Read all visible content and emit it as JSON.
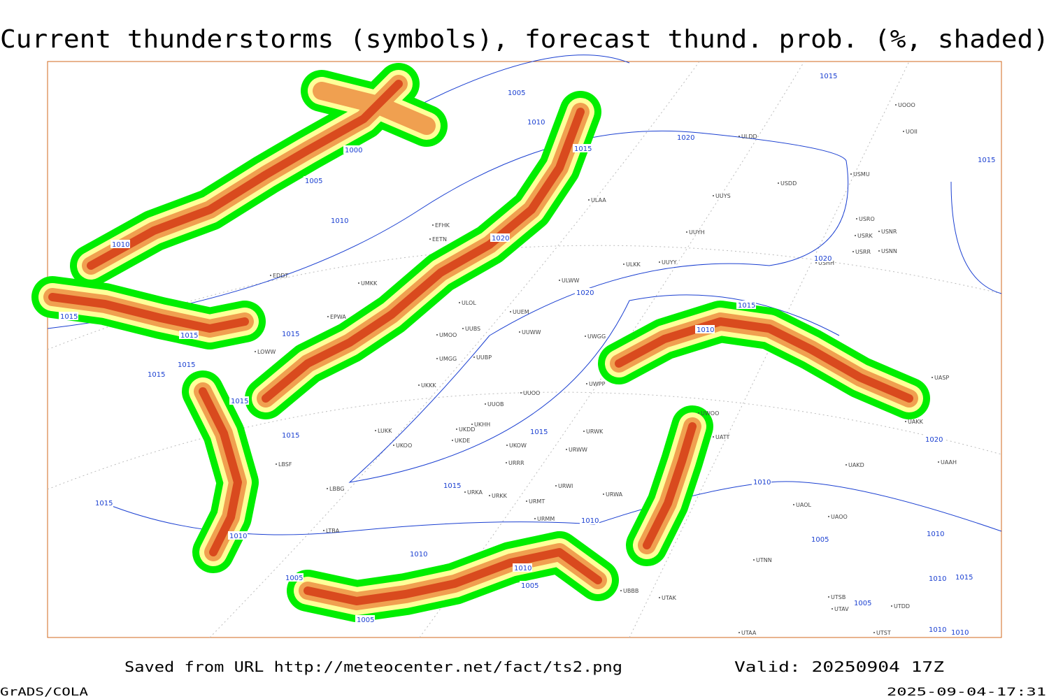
{
  "header": {
    "title": "Current thunderstorms (symbols), forecast thund. prob. (%, shaded)"
  },
  "footer": {
    "source": "Saved from URL http://meteocenter.net/fact/ts2.png",
    "valid": "Valid: 20250904 17Z",
    "software": "GrADS/COLA",
    "timestamp": "2025-09-04-17:31"
  },
  "map": {
    "stations": [
      "EFHK",
      "EETN",
      "EDDT",
      "EPWA",
      "UMKK",
      "ULOL",
      "UMOO",
      "UUBS",
      "UMGG",
      "UUBP",
      "UKKK",
      "UUOO",
      "UUOB",
      "UKHH",
      "UKDD",
      "LUKK",
      "UKOO",
      "UKDE",
      "UKOW",
      "URRR",
      "URKA",
      "URKK",
      "URMT",
      "URMM",
      "URWI",
      "URWA",
      "URWW",
      "URWK",
      "UWPP",
      "UWGG",
      "UUWW",
      "UUEM",
      "ULWW",
      "ULKK",
      "UUYY",
      "UUYH",
      "UUYS",
      "ULAA",
      "ULDD",
      "USDD",
      "USMU",
      "UOOO",
      "UOII",
      "USRO",
      "USRK",
      "USNR",
      "USRR",
      "USNN",
      "USHH",
      "UWOO",
      "UATT",
      "UAKD",
      "UAOL",
      "UAOO",
      "UTNN",
      "UTAK",
      "UBBB",
      "LBSF",
      "LBBG",
      "LOWW",
      "LTBA",
      "UASP",
      "UAKK",
      "UAAH",
      "UTSB",
      "UTAV",
      "UTST",
      "UTAA",
      "UTDD"
    ],
    "isobar_labels": [
      1015,
      1005,
      1010,
      1015,
      1000,
      1005,
      1010,
      1010,
      1020,
      1020,
      1015,
      1020,
      1020,
      1015,
      1015,
      1015,
      1015,
      1015,
      1015,
      1015,
      1015,
      1015,
      1010,
      1020,
      1015,
      1010,
      1010,
      1015,
      1010,
      1010,
      1005,
      1010,
      1010,
      1005,
      1005,
      1005,
      1005,
      1010,
      1015,
      1010,
      1010
    ]
  }
}
